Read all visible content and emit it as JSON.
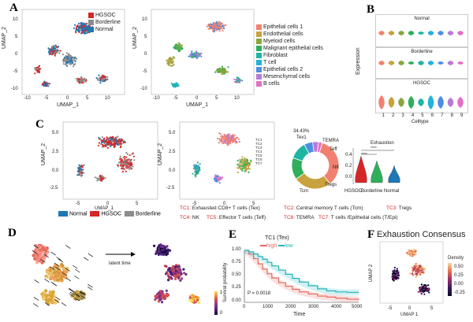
{
  "panels": {
    "a": {
      "letter": "A",
      "left": {
        "xlabel": "UMAP_1",
        "ylabel": "UMAP_2",
        "xticks": [
          "-10",
          "-5",
          "0",
          "5",
          "10"
        ],
        "yticks": [
          "10",
          "5",
          "0",
          "-5",
          "-10"
        ],
        "legend": [
          {
            "label": "HGSOC",
            "color": "#d62728"
          },
          {
            "label": "Borderline",
            "color": "#8c8c8c"
          },
          {
            "label": "Normal",
            "color": "#1f77b4"
          }
        ]
      },
      "right": {
        "xlabel": "UMAP_1",
        "ylabel": "UMAP_2",
        "xticks": [
          "-10",
          "-5",
          "0",
          "5",
          "10"
        ],
        "yticks": [
          "10",
          "5",
          "0",
          "-5",
          "-10"
        ],
        "legend": [
          {
            "label": "Epithelial  cells 1",
            "color": "#f28070"
          },
          {
            "label": "Endothelial cells",
            "color": "#c8a23c"
          },
          {
            "label": "Myeloid cells",
            "color": "#8aa63a"
          },
          {
            "label": "Malignant epithelial cells",
            "color": "#2fae5b"
          },
          {
            "label": "Fibroblast",
            "color": "#1fb5a3"
          },
          {
            "label": "T cell",
            "color": "#23b3d8"
          },
          {
            "label": "Epithelial  cells 2",
            "color": "#4d8fe0"
          },
          {
            "label": "Mesenchymal cells",
            "color": "#b67ad9"
          },
          {
            "label": "B cells",
            "color": "#e46fc4"
          }
        ]
      }
    },
    "b": {
      "letter": "B",
      "facets": [
        "Normal",
        "Borderline",
        "HGSOC"
      ],
      "ylabel": "Expression",
      "xlabel": "Celltype",
      "xticks": [
        "1",
        "2",
        "3",
        "4",
        "5",
        "6",
        "7",
        "8",
        "9"
      ],
      "violin_colors": [
        "#f28070",
        "#c8a23c",
        "#8aa63a",
        "#2fae5b",
        "#1fb5a3",
        "#23b3d8",
        "#4d8fe0",
        "#b67ad9",
        "#e46fc4"
      ]
    },
    "c": {
      "letter": "C",
      "left": {
        "xlabel": "UMAP_1",
        "ylabel": "UMAP_2",
        "yticks": [
          "5.0",
          "2.5",
          "0.0",
          "-2.5"
        ],
        "xticks": [
          "-5",
          "0",
          "5"
        ]
      },
      "mid": {
        "ylabel": "UMAP_2",
        "yticks": [
          "5.0",
          "2.5",
          "0.0",
          "-2.5"
        ],
        "xticks": [
          "-5",
          "0",
          "5"
        ],
        "cluster_labels": [
          "TC1",
          "TC2",
          "TC3",
          "TC4",
          "TC5",
          "TC6",
          "TC7"
        ]
      },
      "legend": [
        {
          "label": "Normal",
          "color": "#1f77b4"
        },
        {
          "label": "HGSOC",
          "color": "#d62728"
        },
        {
          "label": "Borderline",
          "color": "#8c8c8c"
        }
      ],
      "donut": {
        "pct": "34.43%",
        "center_label": "Tex1",
        "labels": [
          "TEMRA",
          "Teff",
          "NK",
          "Tregs",
          "Tcm"
        ],
        "slices": [
          {
            "name": "Tex",
            "value": 34.43,
            "color": "#f28070"
          },
          {
            "name": "Tcm",
            "value": 26,
            "color": "#c8a23c"
          },
          {
            "name": "Tregs",
            "value": 15,
            "color": "#2fae5b"
          },
          {
            "name": "NK",
            "value": 12,
            "color": "#1fb5a3"
          },
          {
            "name": "Teff",
            "value": 6,
            "color": "#4d8fe0"
          },
          {
            "name": "TEMRA",
            "value": 4,
            "color": "#b67ad9"
          },
          {
            "name": "Epi",
            "value": 2.57,
            "color": "#e46fc4"
          }
        ]
      },
      "exhaustion": {
        "title": "Exhaustion",
        "yticks": [
          "0.4",
          "0.2",
          "0.0"
        ],
        "groups": [
          "HGSOC",
          "Borderline",
          "Normal"
        ],
        "colors": [
          "#d62728",
          "#2fae5b",
          "#1f77b4"
        ],
        "sig": [
          "****",
          "****"
        ]
      },
      "tc_legend": [
        {
          "key": "TC1:",
          "text": "Exhausted CD8+ T  cells  (Tex)"
        },
        {
          "key": "TC2:",
          "text": "Central memory T cells (Tcm)"
        },
        {
          "key": "TC3:",
          "text": "Tregs"
        },
        {
          "key": "TC4:",
          "text": "NK"
        },
        {
          "key": "TC5:",
          "text": "Effector T cells  (Teff)"
        },
        {
          "key": "TC6:",
          "text": "TEMRA"
        },
        {
          "key": "TC7:",
          "text": "T cells /Epithelial cells (T/Epi)"
        }
      ]
    },
    "d": {
      "letter": "D",
      "arrow_label": "latent time",
      "colorbar": [
        "1",
        "0"
      ]
    },
    "e": {
      "letter": "E",
      "title": "TC1 (Tex)",
      "legend": [
        {
          "label": "high",
          "color": "#e8675f"
        },
        {
          "label": "low",
          "color": "#26b5b8"
        }
      ],
      "pvalue": "P = 0.0018",
      "xlabel": "Time",
      "ylabel": "Survival probability",
      "xticks": [
        "0",
        "1000",
        "2000",
        "3000",
        "4000",
        "5000"
      ],
      "yticks": [
        "1.00",
        "0.75",
        "0.50",
        "0.25",
        "0.00"
      ],
      "chart_data": {
        "type": "line",
        "title": "TC1 (Tex)",
        "xlabel": "Time",
        "ylabel": "Survival probability",
        "xlim": [
          0,
          5000
        ],
        "ylim": [
          0,
          1
        ],
        "series": [
          {
            "name": "high",
            "x": [
              0,
              200,
              400,
              600,
              800,
              1000,
              1200,
              1500,
              1800,
              2100,
              2400,
              2800,
              3200,
              3600,
              4000,
              4500,
              5000
            ],
            "values": [
              1.0,
              0.93,
              0.84,
              0.74,
              0.64,
              0.55,
              0.47,
              0.38,
              0.31,
              0.25,
              0.2,
              0.16,
              0.12,
              0.1,
              0.08,
              0.06,
              0.05
            ]
          },
          {
            "name": "low",
            "x": [
              0,
              200,
              400,
              600,
              800,
              1000,
              1200,
              1500,
              1800,
              2100,
              2400,
              2800,
              3200,
              3600,
              4000,
              4500,
              5000
            ],
            "values": [
              1.0,
              0.97,
              0.93,
              0.88,
              0.83,
              0.77,
              0.7,
              0.62,
              0.54,
              0.46,
              0.39,
              0.32,
              0.26,
              0.22,
              0.2,
              0.19,
              0.19
            ]
          }
        ]
      }
    },
    "f": {
      "letter": "F",
      "title": "Exhaustion Consensus",
      "xlabel": "UMAP 1",
      "ylabel": "UMAP 2",
      "xticks": [
        "-5",
        "0",
        "5"
      ],
      "cbar_title": "Density",
      "cbar_ticks": [
        "0.50",
        "0.25",
        "0.00",
        "-0.25"
      ]
    }
  }
}
